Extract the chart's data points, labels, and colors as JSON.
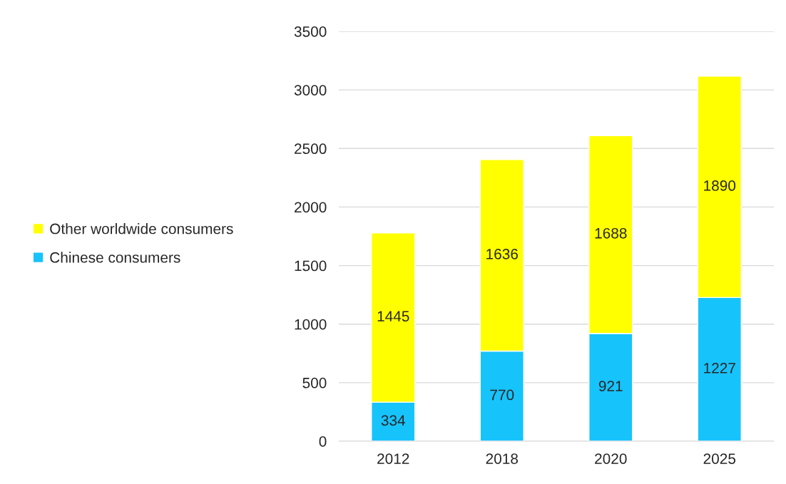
{
  "chart_data": {
    "type": "bar",
    "stacked": true,
    "categories": [
      "2012",
      "2018",
      "2020",
      "2025"
    ],
    "series": [
      {
        "name": "Chinese consumers",
        "color": "#17c3fb",
        "values": [
          334,
          770,
          921,
          1227
        ]
      },
      {
        "name": "Other worldwide consumers",
        "color": "#ffff00",
        "values": [
          1445,
          1636,
          1688,
          1890
        ]
      }
    ],
    "ylim": [
      0,
      3500
    ],
    "yticks": [
      0,
      500,
      1000,
      1500,
      2000,
      2500,
      3000,
      3500
    ],
    "grid": "y",
    "legend": "left",
    "data_labels": true
  }
}
